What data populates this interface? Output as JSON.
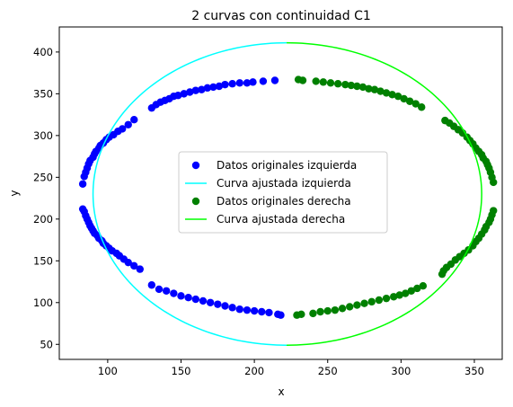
{
  "chart_data": {
    "type": "scatter",
    "title": "2 curvas con continuidad C1",
    "xlabel": "x",
    "ylabel": "y",
    "xlim": [
      67,
      369
    ],
    "ylim": [
      32,
      430
    ],
    "xticks": [
      100,
      150,
      200,
      250,
      300,
      350
    ],
    "yticks": [
      50,
      100,
      150,
      200,
      250,
      300,
      350,
      400
    ],
    "grid": false,
    "legend_position": "center",
    "series": [
      {
        "name": "Datos originales izquierda",
        "kind": "scatter",
        "color": "#0000ff",
        "points": [
          [
            214,
            366
          ],
          [
            206,
            365
          ],
          [
            199,
            364
          ],
          [
            195,
            363
          ],
          [
            190,
            363
          ],
          [
            185,
            362
          ],
          [
            180,
            361
          ],
          [
            176,
            359
          ],
          [
            172,
            358
          ],
          [
            168,
            357
          ],
          [
            164,
            355
          ],
          [
            160,
            354
          ],
          [
            156,
            352
          ],
          [
            152,
            350
          ],
          [
            148,
            348
          ],
          [
            145,
            347
          ],
          [
            142,
            344
          ],
          [
            139,
            342
          ],
          [
            136,
            340
          ],
          [
            133,
            337
          ],
          [
            130,
            333
          ],
          [
            118,
            319
          ],
          [
            114,
            313
          ],
          [
            110,
            308
          ],
          [
            107,
            305
          ],
          [
            104,
            301
          ],
          [
            101,
            298
          ],
          [
            99,
            295
          ],
          [
            97,
            291
          ],
          [
            95,
            288
          ],
          [
            94,
            285
          ],
          [
            92,
            281
          ],
          [
            91,
            278
          ],
          [
            90,
            274
          ],
          [
            88,
            270
          ],
          [
            87,
            266
          ],
          [
            86,
            261
          ],
          [
            85,
            256
          ],
          [
            84,
            251
          ],
          [
            83,
            242
          ],
          [
            83,
            212
          ],
          [
            84,
            209
          ],
          [
            85,
            204
          ],
          [
            86,
            200
          ],
          [
            87,
            196
          ],
          [
            88,
            192
          ],
          [
            89,
            189
          ],
          [
            90,
            186
          ],
          [
            91,
            183
          ],
          [
            93,
            180
          ],
          [
            94,
            177
          ],
          [
            96,
            174
          ],
          [
            97,
            171
          ],
          [
            99,
            168
          ],
          [
            101,
            165
          ],
          [
            103,
            162
          ],
          [
            106,
            159
          ],
          [
            108,
            156
          ],
          [
            111,
            152
          ],
          [
            114,
            148
          ],
          [
            118,
            144
          ],
          [
            122,
            140
          ],
          [
            130,
            121
          ],
          [
            135,
            116
          ],
          [
            140,
            114
          ],
          [
            145,
            111
          ],
          [
            150,
            108
          ],
          [
            155,
            106
          ],
          [
            160,
            104
          ],
          [
            165,
            102
          ],
          [
            170,
            100
          ],
          [
            175,
            98
          ],
          [
            180,
            96
          ],
          [
            185,
            94
          ],
          [
            190,
            92
          ],
          [
            195,
            91
          ],
          [
            200,
            90
          ],
          [
            205,
            89
          ],
          [
            210,
            88
          ],
          [
            216,
            86
          ],
          [
            218,
            85
          ]
        ]
      },
      {
        "name": "Curva ajustada izquierda",
        "kind": "line",
        "color": "#00ffff",
        "cx": 222,
        "cy": 230,
        "rx": 132,
        "ry": 181,
        "theta_start": 90,
        "theta_end": 270
      },
      {
        "name": "Datos originales derecha",
        "kind": "scatter",
        "color": "#008000",
        "points": [
          [
            230,
            367
          ],
          [
            233,
            366
          ],
          [
            242,
            365
          ],
          [
            247,
            364
          ],
          [
            252,
            363
          ],
          [
            257,
            362
          ],
          [
            262,
            361
          ],
          [
            266,
            360
          ],
          [
            270,
            359
          ],
          [
            274,
            358
          ],
          [
            278,
            356
          ],
          [
            282,
            355
          ],
          [
            286,
            353
          ],
          [
            290,
            351
          ],
          [
            294,
            349
          ],
          [
            298,
            347
          ],
          [
            302,
            344
          ],
          [
            306,
            341
          ],
          [
            310,
            338
          ],
          [
            314,
            334
          ],
          [
            330,
            318
          ],
          [
            333,
            315
          ],
          [
            336,
            311
          ],
          [
            339,
            307
          ],
          [
            342,
            303
          ],
          [
            345,
            298
          ],
          [
            347,
            294
          ],
          [
            349,
            290
          ],
          [
            351,
            285
          ],
          [
            353,
            281
          ],
          [
            355,
            277
          ],
          [
            356,
            273
          ],
          [
            358,
            269
          ],
          [
            359,
            265
          ],
          [
            360,
            261
          ],
          [
            361,
            256
          ],
          [
            362,
            250
          ],
          [
            363,
            244
          ],
          [
            363,
            210
          ],
          [
            362,
            205
          ],
          [
            361,
            200
          ],
          [
            360,
            196
          ],
          [
            358,
            191
          ],
          [
            357,
            187
          ],
          [
            355,
            182
          ],
          [
            353,
            177
          ],
          [
            351,
            173
          ],
          [
            349,
            168
          ],
          [
            346,
            163
          ],
          [
            343,
            159
          ],
          [
            340,
            155
          ],
          [
            337,
            151
          ],
          [
            334,
            146
          ],
          [
            331,
            142
          ],
          [
            329,
            138
          ],
          [
            328,
            134
          ],
          [
            315,
            120
          ],
          [
            311,
            117
          ],
          [
            307,
            114
          ],
          [
            303,
            111
          ],
          [
            299,
            109
          ],
          [
            295,
            107
          ],
          [
            290,
            105
          ],
          [
            285,
            103
          ],
          [
            280,
            101
          ],
          [
            275,
            99
          ],
          [
            270,
            97
          ],
          [
            265,
            95
          ],
          [
            260,
            93
          ],
          [
            255,
            91
          ],
          [
            250,
            90
          ],
          [
            245,
            89
          ],
          [
            240,
            87
          ],
          [
            232,
            86
          ],
          [
            229,
            85
          ]
        ]
      },
      {
        "name": "Curva ajustada derecha",
        "kind": "line",
        "color": "#00ff00",
        "cx": 222,
        "cy": 230,
        "rx": 133,
        "ry": 181,
        "theta_start": -90,
        "theta_end": 90
      }
    ]
  }
}
